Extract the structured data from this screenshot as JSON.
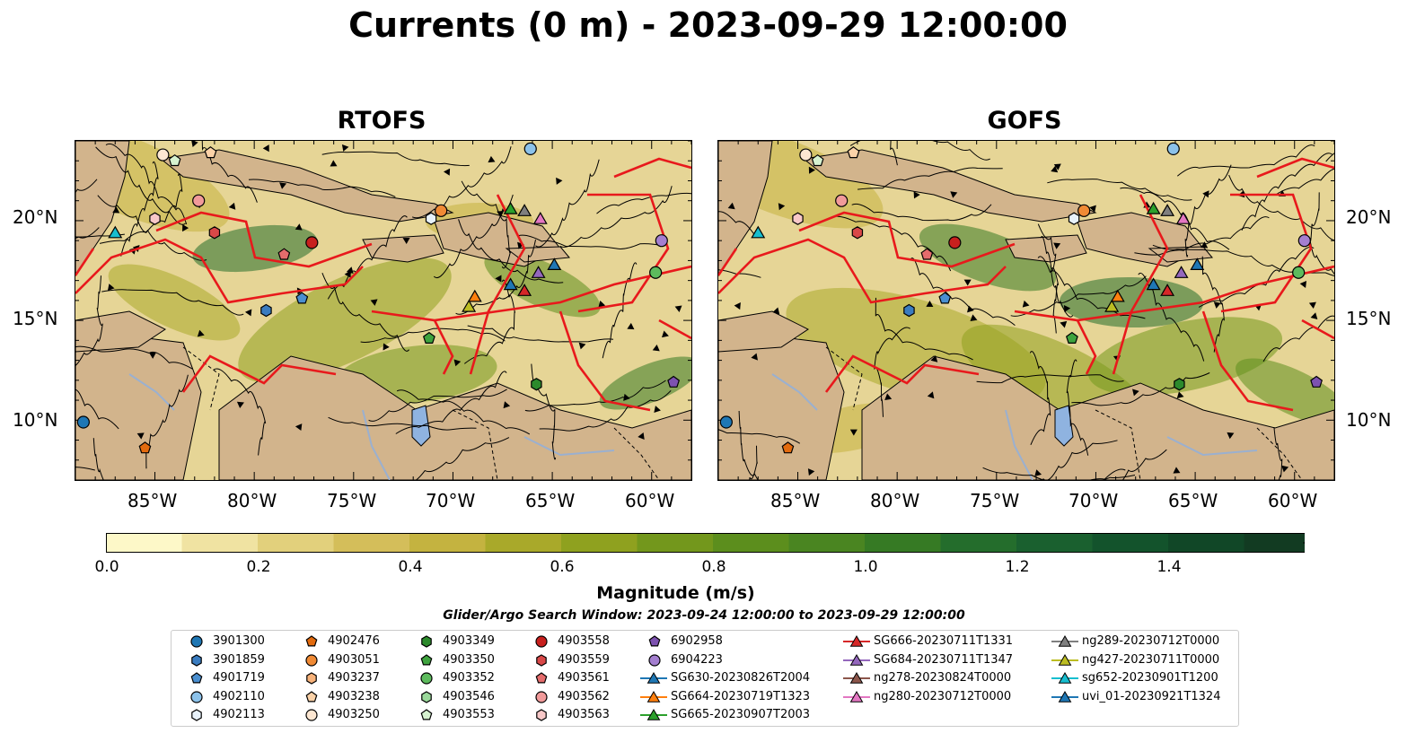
{
  "title": "Currents (0 m) - 2023-09-29 12:00:00",
  "panels": [
    {
      "title": "RTOFS"
    },
    {
      "title": "GOFS"
    }
  ],
  "axes": {
    "lat_labels": [
      "20°N",
      "15°N",
      "10°N"
    ],
    "lon_labels": [
      "85°W",
      "80°W",
      "75°W",
      "70°W",
      "65°W",
      "60°W"
    ]
  },
  "colorbar": {
    "title": "Magnitude (m/s)",
    "ticks": [
      "0.0",
      "0.2",
      "0.4",
      "0.6",
      "0.8",
      "1.0",
      "1.2",
      "1.4"
    ],
    "colors": [
      "#fdf8c8",
      "#f0e3a2",
      "#e2d07c",
      "#d4be5a",
      "#c4b340",
      "#a9a92a",
      "#8fa11f",
      "#73971c",
      "#5c8e1d",
      "#4a8521",
      "#367a24",
      "#246d2c",
      "#1a602f",
      "#13532c",
      "#114727",
      "#123b22",
      "#13301e",
      "#172a18"
    ]
  },
  "window_label": "Glider/Argo Search Window: 2023-09-24 12:00:00 to 2023-09-29 12:00:00",
  "legend": [
    {
      "label": "3901300",
      "marker": "circle",
      "color": "#1f77b4"
    },
    {
      "label": "3901859",
      "marker": "hexagon",
      "color": "#3a7cc0"
    },
    {
      "label": "4901719",
      "marker": "pentagon",
      "color": "#4a8fd0"
    },
    {
      "label": "4902110",
      "marker": "circle",
      "color": "#8cc2ea"
    },
    {
      "label": "4902113",
      "marker": "hexagon",
      "color": "#e8f2fb"
    },
    {
      "label": "4902476",
      "marker": "pentagon",
      "color": "#e36b0e"
    },
    {
      "label": "4903051",
      "marker": "circle",
      "color": "#f08a35"
    },
    {
      "label": "4903237",
      "marker": "hexagon",
      "color": "#f7b27a"
    },
    {
      "label": "4903238",
      "marker": "pentagon",
      "color": "#fbd2a8"
    },
    {
      "label": "4903250",
      "marker": "circle",
      "color": "#fde7d2"
    },
    {
      "label": "4903349",
      "marker": "hexagon",
      "color": "#2c8a2c"
    },
    {
      "label": "4903350",
      "marker": "pentagon",
      "color": "#3ea33e"
    },
    {
      "label": "4903352",
      "marker": "circle",
      "color": "#5dbb5d"
    },
    {
      "label": "4903546",
      "marker": "hexagon",
      "color": "#9ad89a"
    },
    {
      "label": "4903553",
      "marker": "pentagon",
      "color": "#d6f2d0"
    },
    {
      "label": "4903558",
      "marker": "circle",
      "color": "#c8201e"
    },
    {
      "label": "4903559",
      "marker": "hexagon",
      "color": "#d94848"
    },
    {
      "label": "4903561",
      "marker": "pentagon",
      "color": "#e56c6c"
    },
    {
      "label": "4903562",
      "marker": "circle",
      "color": "#f19a9a"
    },
    {
      "label": "4903563",
      "marker": "hexagon",
      "color": "#f8c8c8"
    },
    {
      "label": "6902958",
      "marker": "pentagon",
      "color": "#7d52b0"
    },
    {
      "label": "6904223",
      "marker": "circle",
      "color": "#a47fd0"
    },
    {
      "label": "SG630-20230826T2004",
      "marker": "tri-line",
      "color": "#1f77b4"
    },
    {
      "label": "SG664-20230719T1323",
      "marker": "tri-line",
      "color": "#ff7f0e"
    },
    {
      "label": "SG665-20230907T2003",
      "marker": "tri-line",
      "color": "#2ca02c"
    },
    {
      "label": "SG666-20230711T1331",
      "marker": "tri-line",
      "color": "#d62728"
    },
    {
      "label": "SG684-20230711T1347",
      "marker": "tri-line",
      "color": "#9467bd"
    },
    {
      "label": "ng278-20230824T0000",
      "marker": "tri-line",
      "color": "#8c564b"
    },
    {
      "label": "ng280-20230712T0000",
      "marker": "tri-line",
      "color": "#e377c2"
    },
    {
      "label": "ng289-20230712T0000",
      "marker": "tri-line",
      "color": "#7f7f7f"
    },
    {
      "label": "ng427-20230711T0000",
      "marker": "tri-line",
      "color": "#bcbd22"
    },
    {
      "label": "sg652-20230901T1200",
      "marker": "tri-line",
      "color": "#17becf"
    },
    {
      "label": "uvi_01-20230921T1324",
      "marker": "tri-line",
      "color": "#1f77b4"
    }
  ],
  "map_data": {
    "lon_range": [
      -89,
      -58
    ],
    "lat_range": [
      7,
      24
    ],
    "markers": [
      {
        "id": "4903250",
        "lon": -84.6,
        "lat": 23.3
      },
      {
        "id": "4903553",
        "lon": -84.0,
        "lat": 23.0
      },
      {
        "id": "4903238",
        "lon": -82.2,
        "lat": 23.4
      },
      {
        "id": "4903562",
        "lon": -82.8,
        "lat": 21.0
      },
      {
        "id": "4903563",
        "lon": -85.0,
        "lat": 20.1
      },
      {
        "id": "sg652-20230901T1200",
        "lon": -87.0,
        "lat": 19.4
      },
      {
        "id": "4903559",
        "lon": -82.0,
        "lat": 19.4
      },
      {
        "id": "4903558",
        "lon": -77.1,
        "lat": 18.9
      },
      {
        "id": "4903561",
        "lon": -78.5,
        "lat": 18.3
      },
      {
        "id": "4901719",
        "lon": -77.6,
        "lat": 16.1
      },
      {
        "id": "3901859",
        "lon": -79.4,
        "lat": 15.5
      },
      {
        "id": "4902113",
        "lon": -71.1,
        "lat": 20.1
      },
      {
        "id": "4903051",
        "lon": -70.6,
        "lat": 20.5
      },
      {
        "id": "4902110",
        "lon": -66.1,
        "lat": 23.6
      },
      {
        "id": "SG665-20230907T2003",
        "lon": -67.1,
        "lat": 20.6
      },
      {
        "id": "ng289-20230712T0000",
        "lon": -66.4,
        "lat": 20.5
      },
      {
        "id": "ng280-20230712T0000",
        "lon": -65.6,
        "lat": 20.1
      },
      {
        "id": "6904223",
        "lon": -59.5,
        "lat": 19.0
      },
      {
        "id": "4903352",
        "lon": -59.8,
        "lat": 17.4
      },
      {
        "id": "uvi_01-20230921T1324",
        "lon": -64.9,
        "lat": 17.8
      },
      {
        "id": "SG684-20230711T1347",
        "lon": -65.7,
        "lat": 17.4
      },
      {
        "id": "SG630-20230826T2004",
        "lon": -67.1,
        "lat": 16.8
      },
      {
        "id": "SG666-20230711T1331",
        "lon": -66.4,
        "lat": 16.5
      },
      {
        "id": "SG664-20230719T1323",
        "lon": -68.9,
        "lat": 16.2
      },
      {
        "id": "ng427-20230711T0000",
        "lon": -69.2,
        "lat": 15.7
      },
      {
        "id": "4903350",
        "lon": -71.2,
        "lat": 14.1
      },
      {
        "id": "4903349",
        "lon": -65.8,
        "lat": 11.8
      },
      {
        "id": "6902958",
        "lon": -58.9,
        "lat": 11.9
      },
      {
        "id": "3901300",
        "lon": -88.6,
        "lat": 9.9
      },
      {
        "id": "4902476",
        "lon": -85.5,
        "lat": 8.6
      }
    ]
  }
}
